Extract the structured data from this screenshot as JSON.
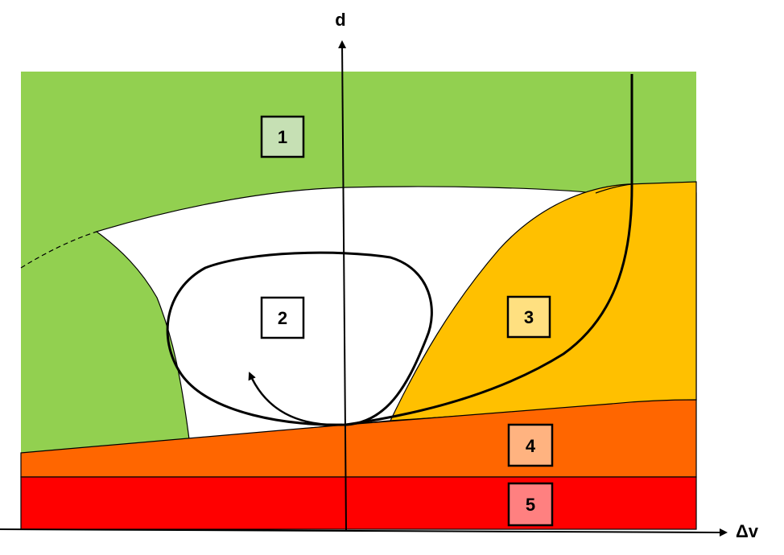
{
  "axes": {
    "y_label": "d",
    "x_label": "Δv"
  },
  "regions": [
    {
      "id": "1",
      "label": "1",
      "color": "#92d050",
      "box_color": "#c6e0b4"
    },
    {
      "id": "2",
      "label": "2",
      "color": "#ffffff",
      "box_color": "#ffffff"
    },
    {
      "id": "3",
      "label": "3",
      "color": "#ffc000",
      "box_color": "#ffe080"
    },
    {
      "id": "4",
      "label": "4",
      "color": "#ff6600",
      "box_color": "#ffb380"
    },
    {
      "id": "5",
      "label": "5",
      "color": "#ff0000",
      "box_color": "#ff8080"
    }
  ]
}
